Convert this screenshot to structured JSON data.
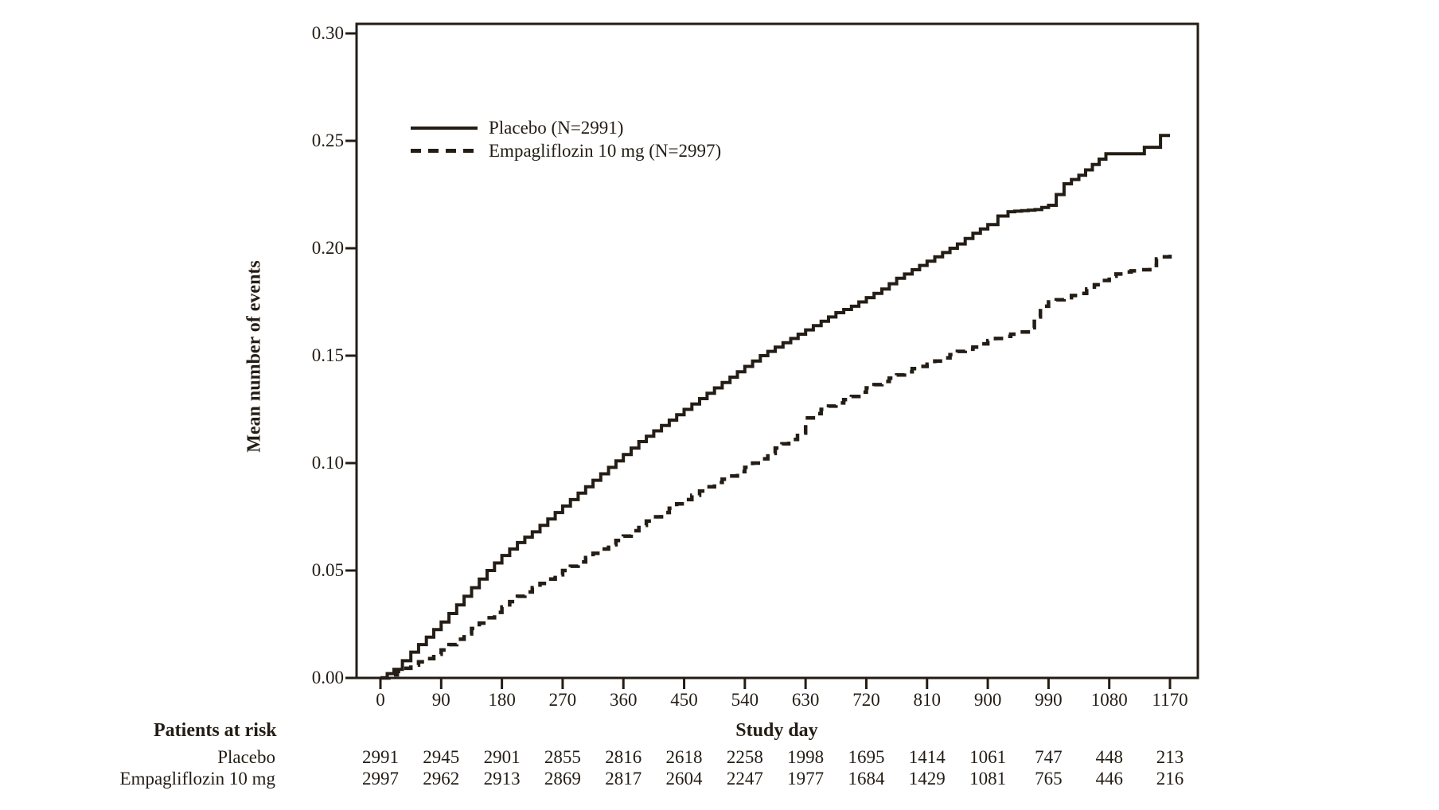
{
  "figure": {
    "background": "#ffffff",
    "ink_color": "#241d15"
  },
  "chart_data": {
    "type": "line",
    "subtype": "cumulative-event step curves",
    "title": "",
    "xlabel": "Study day",
    "ylabel": "Mean number of events",
    "xlim": [
      0,
      1170
    ],
    "ylim": [
      0.0,
      0.3
    ],
    "x_ticks": [
      0,
      90,
      180,
      270,
      360,
      450,
      540,
      630,
      720,
      810,
      900,
      990,
      1080,
      1170
    ],
    "y_tick_labels": [
      "0.00",
      "0.05",
      "0.10",
      "0.15",
      "0.20",
      "0.25",
      "0.30"
    ],
    "grid": false,
    "legend_position": "upper-left-inside",
    "series": [
      {
        "name": "Placebo",
        "label": "Placebo (N=2991)",
        "n": 2991,
        "line_style": "solid",
        "points": [
          [
            0,
            0
          ],
          [
            20,
            0.004
          ],
          [
            45,
            0.012
          ],
          [
            68,
            0.019
          ],
          [
            90,
            0.026
          ],
          [
            113,
            0.034
          ],
          [
            135,
            0.042
          ],
          [
            158,
            0.05
          ],
          [
            180,
            0.057
          ],
          [
            203,
            0.063
          ],
          [
            225,
            0.068
          ],
          [
            248,
            0.074
          ],
          [
            270,
            0.08
          ],
          [
            293,
            0.086
          ],
          [
            315,
            0.092
          ],
          [
            338,
            0.098
          ],
          [
            360,
            0.104
          ],
          [
            383,
            0.11
          ],
          [
            405,
            0.115
          ],
          [
            428,
            0.12
          ],
          [
            450,
            0.125
          ],
          [
            473,
            0.13
          ],
          [
            495,
            0.135
          ],
          [
            518,
            0.14
          ],
          [
            540,
            0.145
          ],
          [
            563,
            0.15
          ],
          [
            585,
            0.154
          ],
          [
            608,
            0.158
          ],
          [
            630,
            0.162
          ],
          [
            653,
            0.166
          ],
          [
            675,
            0.17
          ],
          [
            698,
            0.173
          ],
          [
            720,
            0.177
          ],
          [
            743,
            0.181
          ],
          [
            765,
            0.186
          ],
          [
            788,
            0.19
          ],
          [
            810,
            0.194
          ],
          [
            833,
            0.198
          ],
          [
            855,
            0.202
          ],
          [
            878,
            0.207
          ],
          [
            900,
            0.211
          ],
          [
            915,
            0.215
          ],
          [
            930,
            0.217
          ],
          [
            970,
            0.218
          ],
          [
            990,
            0.22
          ],
          [
            1013,
            0.23
          ],
          [
            1035,
            0.234
          ],
          [
            1055,
            0.239
          ],
          [
            1075,
            0.244
          ],
          [
            1128,
            0.244
          ],
          [
            1132,
            0.247
          ],
          [
            1152,
            0.247
          ],
          [
            1156,
            0.2525
          ],
          [
            1170,
            0.2525
          ]
        ]
      },
      {
        "name": "Empagliflozin 10 mg",
        "label": "Empagliflozin 10 mg (N=2997)",
        "n": 2997,
        "line_style": "dashed",
        "points": [
          [
            0,
            0
          ],
          [
            25,
            0.003
          ],
          [
            45,
            0.006
          ],
          [
            68,
            0.009
          ],
          [
            90,
            0.013
          ],
          [
            113,
            0.018
          ],
          [
            135,
            0.023
          ],
          [
            158,
            0.028
          ],
          [
            180,
            0.033
          ],
          [
            203,
            0.038
          ],
          [
            225,
            0.042
          ],
          [
            248,
            0.046
          ],
          [
            270,
            0.05
          ],
          [
            293,
            0.054
          ],
          [
            315,
            0.058
          ],
          [
            338,
            0.062
          ],
          [
            360,
            0.066
          ],
          [
            383,
            0.071
          ],
          [
            405,
            0.075
          ],
          [
            428,
            0.079
          ],
          [
            450,
            0.083
          ],
          [
            473,
            0.087
          ],
          [
            495,
            0.091
          ],
          [
            518,
            0.094
          ],
          [
            540,
            0.098
          ],
          [
            563,
            0.102
          ],
          [
            585,
            0.107
          ],
          [
            605,
            0.111
          ],
          [
            618,
            0.114
          ],
          [
            630,
            0.121
          ],
          [
            653,
            0.125
          ],
          [
            675,
            0.128
          ],
          [
            698,
            0.131
          ],
          [
            720,
            0.135
          ],
          [
            743,
            0.138
          ],
          [
            765,
            0.141
          ],
          [
            788,
            0.144
          ],
          [
            810,
            0.146
          ],
          [
            833,
            0.149
          ],
          [
            855,
            0.152
          ],
          [
            878,
            0.154
          ],
          [
            900,
            0.157
          ],
          [
            923,
            0.159
          ],
          [
            945,
            0.161
          ],
          [
            960,
            0.163
          ],
          [
            978,
            0.173
          ],
          [
            990,
            0.175
          ],
          [
            1013,
            0.177
          ],
          [
            1035,
            0.179
          ],
          [
            1058,
            0.183
          ],
          [
            1080,
            0.187
          ],
          [
            1100,
            0.189
          ],
          [
            1125,
            0.19
          ],
          [
            1140,
            0.192
          ],
          [
            1150,
            0.195
          ],
          [
            1158,
            0.196
          ],
          [
            1170,
            0.197
          ]
        ]
      }
    ],
    "risk_table": {
      "title": "Patients at risk",
      "days": [
        0,
        90,
        180,
        270,
        360,
        450,
        540,
        630,
        720,
        810,
        900,
        990,
        1080,
        1170
      ],
      "rows": [
        {
          "label": "Placebo",
          "values": [
            2991,
            2945,
            2901,
            2855,
            2816,
            2618,
            2258,
            1998,
            1695,
            1414,
            1061,
            747,
            448,
            213
          ]
        },
        {
          "label": "Empagliflozin 10 mg",
          "values": [
            2997,
            2962,
            2913,
            2869,
            2817,
            2604,
            2247,
            1977,
            1684,
            1429,
            1081,
            765,
            446,
            216
          ]
        }
      ]
    }
  }
}
